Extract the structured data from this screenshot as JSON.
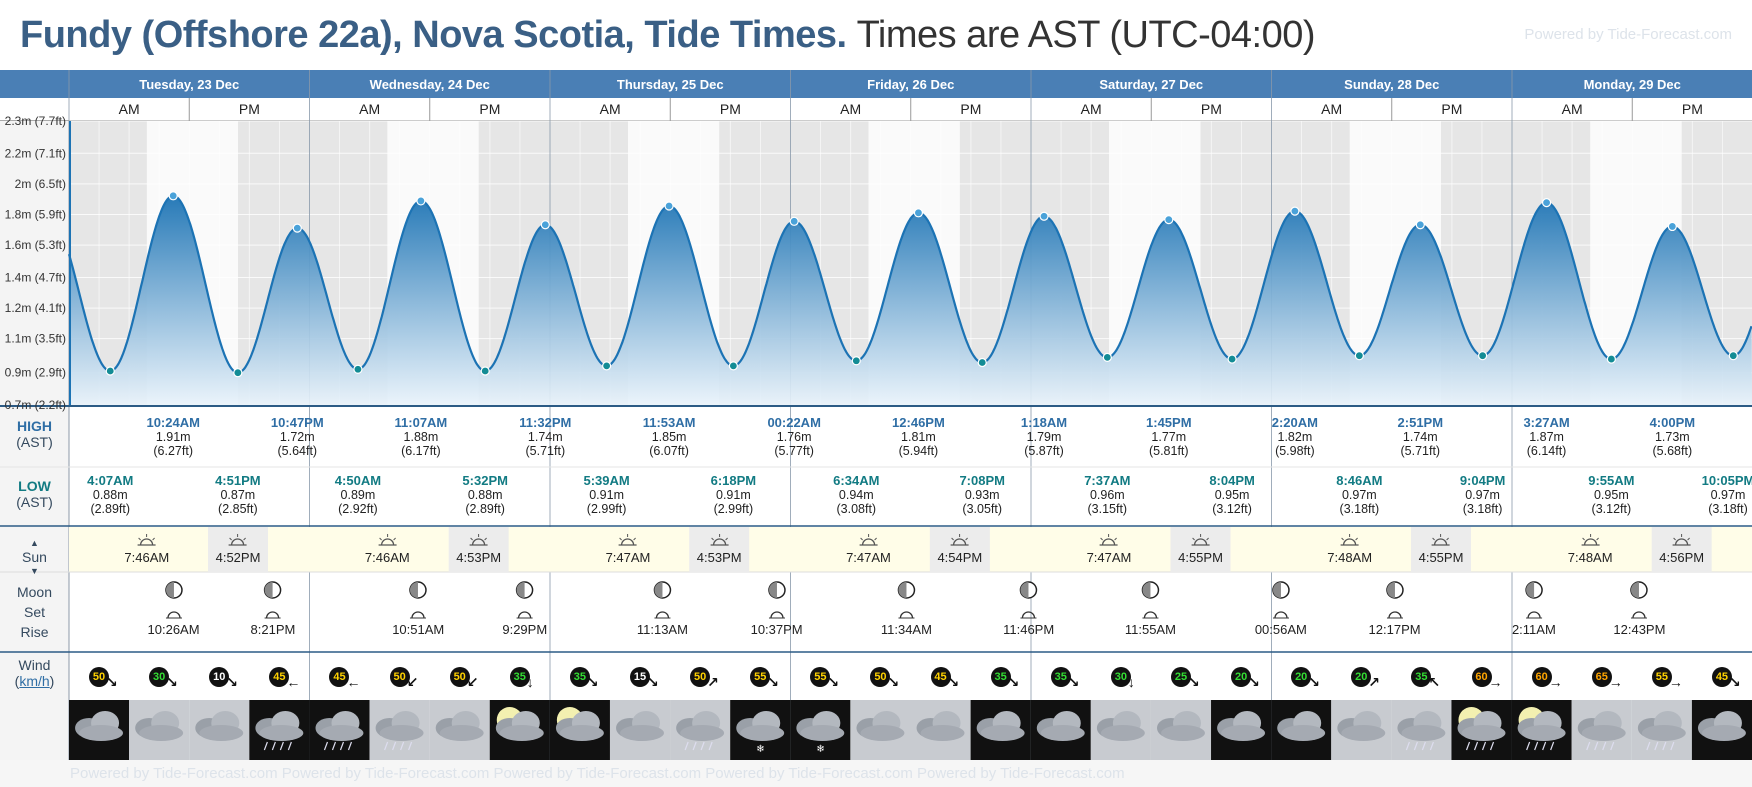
{
  "title": {
    "main": "Fundy (Offshore 22a), Nova Scotia, Tide Times.",
    "sub": "Times are AST (UTC-04:00)",
    "powered": "Powered by Tide-Forecast.com"
  },
  "footer": {
    "powered": "Powered by Tide-Forecast.com        Powered by Tide-Forecast.com        Powered by Tide-Forecast.com        Powered by Tide-Forecast.com        Powered by Tide-Forecast.com"
  },
  "labels": {
    "high": "HIGH",
    "high_tz": "(AST)",
    "low": "LOW",
    "low_tz": "(AST)",
    "sun": "Sun",
    "moon": "Moon",
    "set": "Set",
    "rise": "Rise",
    "wind": "Wind",
    "wind_unit": "km/h",
    "am": "AM",
    "pm": "PM"
  },
  "colors": {
    "header_blue": "#4a7fb5",
    "tide_dark": "#1c73b4",
    "tide_light": "#e9f3fb",
    "night_gray": "#e6e6e6",
    "sun_bg": "#fffde8"
  },
  "days": [
    "Tuesday, 23 Dec",
    "Wednesday, 24 Dec",
    "Thursday, 25 Dec",
    "Friday, 26 Dec",
    "Saturday, 27 Dec",
    "Sunday, 28 Dec",
    "Monday, 29 Dec"
  ],
  "chart_data": {
    "type": "area",
    "ylabel": "",
    "y_ticks": [
      "0.7m (2.2ft)",
      "0.9m (2.9ft)",
      "1.1m (3.5ft)",
      "1.2m (4.1ft)",
      "1.4m (4.7ft)",
      "1.6m (5.3ft)",
      "1.8m (5.9ft)",
      "2m (6.5ft)",
      "2.2m (7.1ft)",
      "2.3m (7.7ft)"
    ],
    "y_tick_values": [
      0.68,
      0.87,
      1.07,
      1.25,
      1.43,
      1.62,
      1.8,
      1.98,
      2.16,
      2.35
    ],
    "ylim": [
      0.68,
      2.35
    ],
    "xlim_hours": [
      0,
      168
    ],
    "extremes": [
      {
        "day": 0,
        "time": "4:07AM",
        "h": 0.88,
        "type": "low"
      },
      {
        "day": 0,
        "time": "10:24AM",
        "h": 1.91,
        "type": "high"
      },
      {
        "day": 0,
        "time": "4:51PM",
        "h": 0.87,
        "type": "low"
      },
      {
        "day": 0,
        "time": "10:47PM",
        "h": 1.72,
        "type": "high"
      },
      {
        "day": 1,
        "time": "4:50AM",
        "h": 0.89,
        "type": "low"
      },
      {
        "day": 1,
        "time": "11:07AM",
        "h": 1.88,
        "type": "high"
      },
      {
        "day": 1,
        "time": "5:32PM",
        "h": 0.88,
        "type": "low"
      },
      {
        "day": 1,
        "time": "11:32PM",
        "h": 1.74,
        "type": "high"
      },
      {
        "day": 2,
        "time": "5:39AM",
        "h": 0.91,
        "type": "low"
      },
      {
        "day": 2,
        "time": "11:53AM",
        "h": 1.85,
        "type": "high"
      },
      {
        "day": 2,
        "time": "6:18PM",
        "h": 0.91,
        "type": "low"
      },
      {
        "day": 3,
        "time": "00:22AM",
        "h": 1.76,
        "type": "high"
      },
      {
        "day": 3,
        "time": "6:34AM",
        "h": 0.94,
        "type": "low"
      },
      {
        "day": 3,
        "time": "12:46PM",
        "h": 1.81,
        "type": "high"
      },
      {
        "day": 3,
        "time": "7:08PM",
        "h": 0.93,
        "type": "low"
      },
      {
        "day": 4,
        "time": "1:18AM",
        "h": 1.79,
        "type": "high"
      },
      {
        "day": 4,
        "time": "7:37AM",
        "h": 0.96,
        "type": "low"
      },
      {
        "day": 4,
        "time": "1:45PM",
        "h": 1.77,
        "type": "high"
      },
      {
        "day": 4,
        "time": "8:04PM",
        "h": 0.95,
        "type": "low"
      },
      {
        "day": 5,
        "time": "2:20AM",
        "h": 1.82,
        "type": "high"
      },
      {
        "day": 5,
        "time": "8:46AM",
        "h": 0.97,
        "type": "low"
      },
      {
        "day": 5,
        "time": "2:51PM",
        "h": 1.74,
        "type": "high"
      },
      {
        "day": 5,
        "time": "9:04PM",
        "h": 0.97,
        "type": "low"
      },
      {
        "day": 6,
        "time": "3:27AM",
        "h": 1.87,
        "type": "high"
      },
      {
        "day": 6,
        "time": "9:55AM",
        "h": 0.95,
        "type": "low"
      },
      {
        "day": 6,
        "time": "4:00PM",
        "h": 1.73,
        "type": "high"
      },
      {
        "day": 6,
        "time": "10:05PM",
        "h": 0.97,
        "type": "low"
      }
    ]
  },
  "tide_labels": [
    {
      "type": "low",
      "time": "4:07AM",
      "m": "0.88m",
      "ft": "(2.89ft)"
    },
    {
      "type": "high",
      "time": "10:24AM",
      "m": "1.91m",
      "ft": "(6.27ft)"
    },
    {
      "type": "low",
      "time": "4:51PM",
      "m": "0.87m",
      "ft": "(2.85ft)"
    },
    {
      "type": "high",
      "time": "10:47PM",
      "m": "1.72m",
      "ft": "(5.64ft)"
    },
    {
      "type": "low",
      "time": "4:50AM",
      "m": "0.89m",
      "ft": "(2.92ft)"
    },
    {
      "type": "high",
      "time": "11:07AM",
      "m": "1.88m",
      "ft": "(6.17ft)"
    },
    {
      "type": "low",
      "time": "5:32PM",
      "m": "0.88m",
      "ft": "(2.89ft)"
    },
    {
      "type": "high",
      "time": "11:32PM",
      "m": "1.74m",
      "ft": "(5.71ft)"
    },
    {
      "type": "low",
      "time": "5:39AM",
      "m": "0.91m",
      "ft": "(2.99ft)"
    },
    {
      "type": "high",
      "time": "11:53AM",
      "m": "1.85m",
      "ft": "(6.07ft)"
    },
    {
      "type": "low",
      "time": "6:18PM",
      "m": "0.91m",
      "ft": "(2.99ft)"
    },
    {
      "type": "high",
      "time": "00:22AM",
      "m": "1.76m",
      "ft": "(5.77ft)"
    },
    {
      "type": "low",
      "time": "6:34AM",
      "m": "0.94m",
      "ft": "(3.08ft)"
    },
    {
      "type": "high",
      "time": "12:46PM",
      "m": "1.81m",
      "ft": "(5.94ft)"
    },
    {
      "type": "low",
      "time": "7:08PM",
      "m": "0.93m",
      "ft": "(3.05ft)"
    },
    {
      "type": "high",
      "time": "1:18AM",
      "m": "1.79m",
      "ft": "(5.87ft)"
    },
    {
      "type": "low",
      "time": "7:37AM",
      "m": "0.96m",
      "ft": "(3.15ft)"
    },
    {
      "type": "high",
      "time": "1:45PM",
      "m": "1.77m",
      "ft": "(5.81ft)"
    },
    {
      "type": "low",
      "time": "8:04PM",
      "m": "0.95m",
      "ft": "(3.12ft)"
    },
    {
      "type": "high",
      "time": "2:20AM",
      "m": "1.82m",
      "ft": "(5.98ft)"
    },
    {
      "type": "low",
      "time": "8:46AM",
      "m": "0.97m",
      "ft": "(3.18ft)"
    },
    {
      "type": "high",
      "time": "2:51PM",
      "m": "1.74m",
      "ft": "(5.71ft)"
    },
    {
      "type": "low",
      "time": "9:04PM",
      "m": "0.97m",
      "ft": "(3.18ft)"
    },
    {
      "type": "high",
      "time": "3:27AM",
      "m": "1.87m",
      "ft": "(6.14ft)"
    },
    {
      "type": "low",
      "time": "9:55AM",
      "m": "0.95m",
      "ft": "(3.12ft)"
    },
    {
      "type": "high",
      "time": "4:00PM",
      "m": "1.73m",
      "ft": "(5.68ft)"
    },
    {
      "type": "low",
      "time": "10:05PM",
      "m": "0.97m",
      "ft": "(3.18ft)"
    }
  ],
  "sun": [
    {
      "rise": "7:46AM",
      "set": "4:52PM"
    },
    {
      "rise": "7:46AM",
      "set": "4:53PM"
    },
    {
      "rise": "7:47AM",
      "set": "4:53PM"
    },
    {
      "rise": "7:47AM",
      "set": "4:54PM"
    },
    {
      "rise": "7:47AM",
      "set": "4:55PM"
    },
    {
      "rise": "7:48AM",
      "set": "4:55PM"
    },
    {
      "rise": "7:48AM",
      "set": "4:56PM"
    }
  ],
  "moon": [
    {
      "time": "10:26AM",
      "event": "rise"
    },
    {
      "time": "8:21PM",
      "event": "set"
    },
    {
      "time": "10:51AM",
      "event": "rise"
    },
    {
      "time": "9:29PM",
      "event": "set"
    },
    {
      "time": "11:13AM",
      "event": "rise"
    },
    {
      "time": "10:37PM",
      "event": "set"
    },
    {
      "time": "11:34AM",
      "event": "rise"
    },
    {
      "time": "11:46PM",
      "event": "set"
    },
    {
      "time": "11:55AM",
      "event": "rise"
    },
    {
      "time": "00:56AM",
      "event": "set"
    },
    {
      "time": "12:17PM",
      "event": "rise"
    },
    {
      "time": "2:11AM",
      "event": "set"
    },
    {
      "time": "12:43PM",
      "event": "rise"
    }
  ],
  "wind": [
    {
      "v": 50,
      "c": "#ffd200",
      "a": "↘"
    },
    {
      "v": 30,
      "c": "#33dd33",
      "a": "↘"
    },
    {
      "v": 10,
      "c": "#ffffff",
      "a": "↘"
    },
    {
      "v": 45,
      "c": "#ffd200",
      "a": "←"
    },
    {
      "v": 45,
      "c": "#ffd200",
      "a": "←"
    },
    {
      "v": 50,
      "c": "#ffd200",
      "a": "↙"
    },
    {
      "v": 50,
      "c": "#ffd200",
      "a": "↙"
    },
    {
      "v": 35,
      "c": "#33dd33",
      "a": "↓"
    },
    {
      "v": 35,
      "c": "#33dd33",
      "a": "↘"
    },
    {
      "v": 15,
      "c": "#ffffff",
      "a": "↘"
    },
    {
      "v": 50,
      "c": "#ffd200",
      "a": "↗"
    },
    {
      "v": 55,
      "c": "#ffd200",
      "a": "↘"
    },
    {
      "v": 55,
      "c": "#ffd200",
      "a": "↘"
    },
    {
      "v": 50,
      "c": "#ffd200",
      "a": "↘"
    },
    {
      "v": 45,
      "c": "#ffd200",
      "a": "↘"
    },
    {
      "v": 35,
      "c": "#33dd33",
      "a": "↘"
    },
    {
      "v": 35,
      "c": "#33dd33",
      "a": "↘"
    },
    {
      "v": 30,
      "c": "#33dd33",
      "a": "↓"
    },
    {
      "v": 25,
      "c": "#33dd33",
      "a": "↘"
    },
    {
      "v": 20,
      "c": "#33dd33",
      "a": "↘"
    },
    {
      "v": 20,
      "c": "#33dd33",
      "a": "↘"
    },
    {
      "v": 20,
      "c": "#33dd33",
      "a": "↗"
    },
    {
      "v": 35,
      "c": "#33dd33",
      "a": "↖"
    },
    {
      "v": 60,
      "c": "#ffa500",
      "a": "→"
    },
    {
      "v": 60,
      "c": "#ffa500",
      "a": "→"
    },
    {
      "v": 65,
      "c": "#ffa500",
      "a": "→"
    },
    {
      "v": 55,
      "c": "#ffd200",
      "a": "→"
    },
    {
      "v": 45,
      "c": "#ffd200",
      "a": "↘"
    }
  ],
  "weather": [
    "night-cloud",
    "cloudy",
    "cloudy",
    "night-rain",
    "night-rain",
    "rain",
    "cloudy",
    "night-moon-cloud",
    "night-moon-cloud",
    "cloudy",
    "rain",
    "night-snow",
    "night-snow",
    "cloudy",
    "cloudy",
    "night-cloud",
    "night-cloud",
    "cloudy",
    "cloudy",
    "night-cloud",
    "night-cloud",
    "cloudy",
    "rain",
    "night-moon-rain",
    "night-moon-rain",
    "rain",
    "rain",
    "night-cloud"
  ]
}
